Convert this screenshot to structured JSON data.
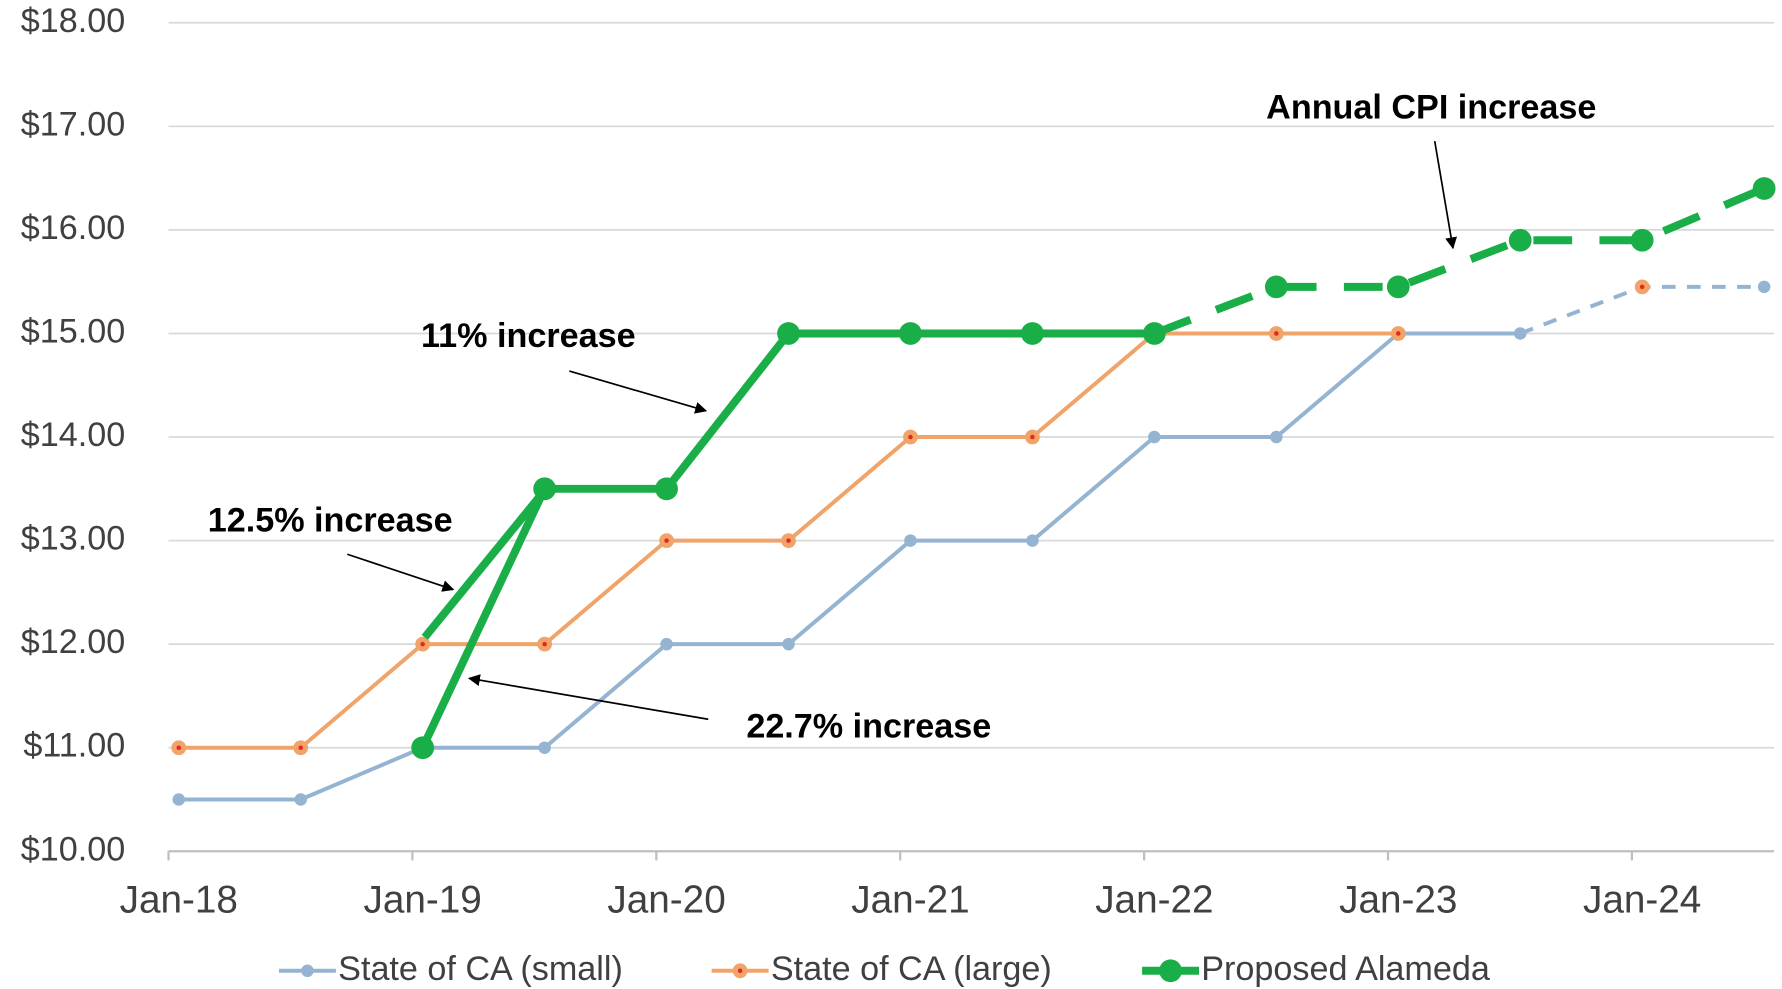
{
  "chart_data": {
    "type": "line",
    "categories": [
      "Jan-18",
      null,
      "Jan-19",
      null,
      "Jan-20",
      null,
      "Jan-21",
      null,
      "Jan-22",
      null,
      "Jan-23",
      null,
      "Jan-24",
      null
    ],
    "series": [
      {
        "name": "State of CA (small)",
        "color": "#94b4d2",
        "dash_from": 11,
        "values": [
          10.5,
          10.5,
          11,
          11,
          12,
          12,
          13,
          13,
          14,
          14,
          15,
          15,
          15.45,
          15.45
        ]
      },
      {
        "name": "State of CA (large)",
        "color": "#f0a46a",
        "dash_from": null,
        "values": [
          11,
          11,
          12,
          12,
          13,
          13,
          14,
          14,
          15,
          15,
          15,
          null,
          15.45,
          null
        ]
      },
      {
        "name": "Proposed Alameda",
        "color": "#1aae48",
        "dash_from": 8,
        "values": [
          null,
          null,
          11,
          13.5,
          13.5,
          15,
          15,
          15,
          15,
          15.45,
          15.45,
          15.9,
          15.9,
          16.4
        ]
      }
    ],
    "ylim": [
      10,
      18
    ],
    "yticks": [
      {
        "value": 10,
        "label": "$10.00"
      },
      {
        "value": 11,
        "label": "$11.00"
      },
      {
        "value": 12,
        "label": "$12.00"
      },
      {
        "value": 13,
        "label": "$13.00"
      },
      {
        "value": 14,
        "label": "$14.00"
      },
      {
        "value": 15,
        "label": "$15.00"
      },
      {
        "value": 16,
        "label": "$16.00"
      },
      {
        "value": 17,
        "label": "$17.00"
      },
      {
        "value": 18,
        "label": "$18.00"
      }
    ],
    "grid": true,
    "legend": "bottom",
    "annotations": [
      "Annual CPI increase",
      "11% increase",
      "12.5% increase",
      "22.7% increase"
    ]
  }
}
